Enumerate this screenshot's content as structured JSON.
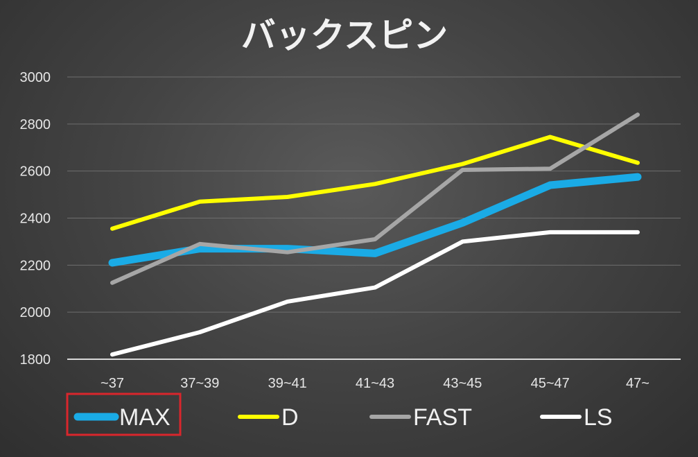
{
  "chart_data": {
    "type": "line",
    "title": "バックスピン",
    "xlabel": "",
    "ylabel": "",
    "categories": [
      "~37",
      "37~39",
      "39~41",
      "41~43",
      "43~45",
      "45~47",
      "47~"
    ],
    "ylim": [
      1800,
      3000
    ],
    "yticks": [
      1800,
      2000,
      2200,
      2400,
      2600,
      2800,
      3000
    ],
    "grid": true,
    "legend_position": "bottom",
    "series": [
      {
        "name": "MAX",
        "color": "#1aabe6",
        "values": [
          2210,
          2270,
          2270,
          2250,
          2380,
          2540,
          2575
        ]
      },
      {
        "name": "D",
        "color": "#ffff00",
        "values": [
          2355,
          2470,
          2490,
          2545,
          2630,
          2745,
          2635
        ]
      },
      {
        "name": "FAST",
        "color": "#a6a6a6",
        "values": [
          2125,
          2290,
          2255,
          2310,
          2605,
          2610,
          2840
        ]
      },
      {
        "name": "LS",
        "color": "#ffffff",
        "values": [
          1820,
          1915,
          2045,
          2105,
          2300,
          2340,
          2340
        ]
      }
    ],
    "highlight_color": "#d9262c"
  }
}
